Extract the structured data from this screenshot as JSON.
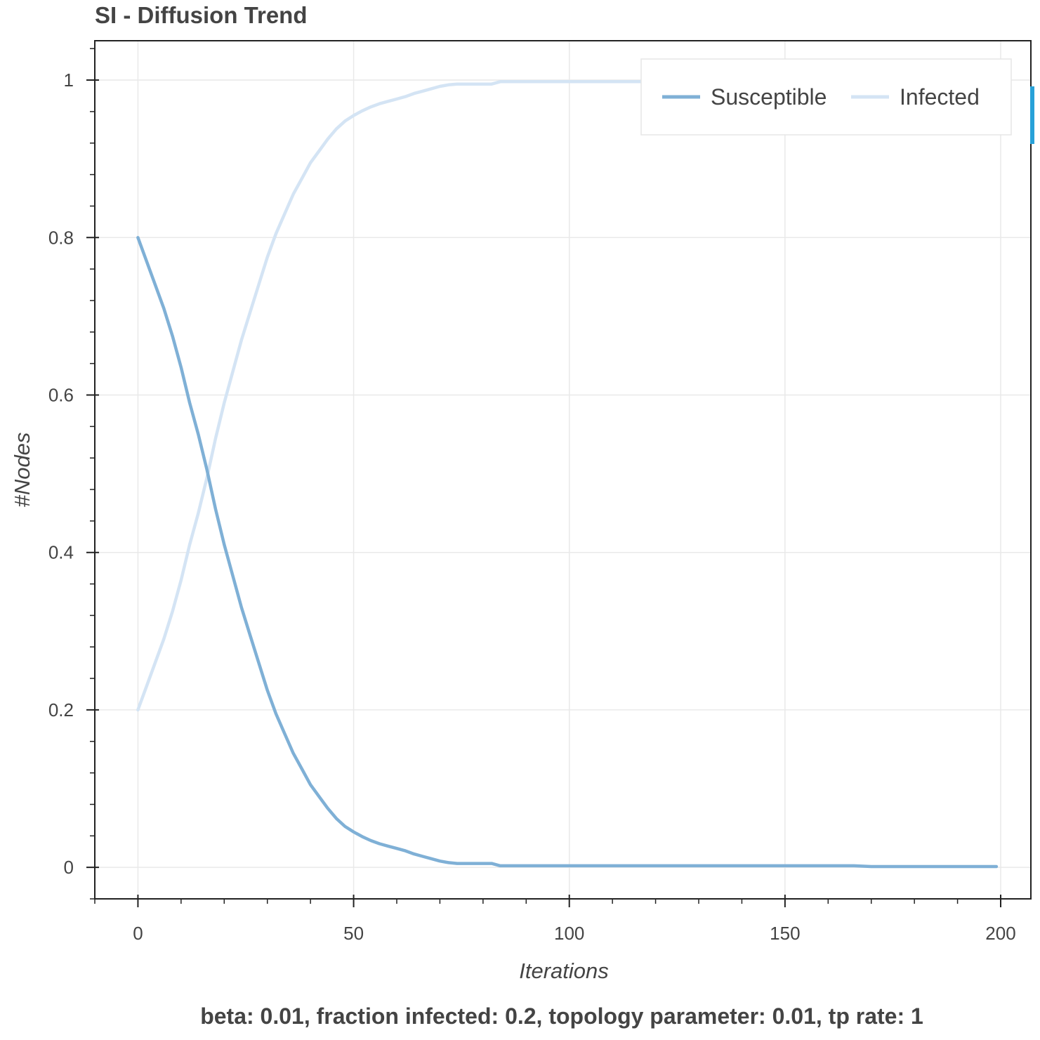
{
  "chart_data": {
    "type": "line",
    "title": "SI - Diffusion Trend",
    "xlabel": "Iterations",
    "ylabel": "#Nodes",
    "footer": "beta: 0.01, fraction infected: 0.2, topology parameter: 0.01, tp rate: 1",
    "xlim": [
      -10,
      207
    ],
    "ylim": [
      -0.04,
      1.05
    ],
    "x_ticks": [
      0,
      50,
      100,
      150,
      200
    ],
    "x_tick_labels": [
      "0",
      "50",
      "100",
      "150",
      "200"
    ],
    "y_ticks": [
      0,
      0.2,
      0.4,
      0.6,
      0.8,
      1
    ],
    "y_tick_labels": [
      "0",
      "0.2",
      "0.4",
      "0.6",
      "0.8",
      "1"
    ],
    "grid": true,
    "legend": "top-right",
    "series": [
      {
        "name": "Susceptible",
        "color": "#7fb0d6",
        "x": [
          0,
          2,
          4,
          6,
          8,
          10,
          12,
          14,
          16,
          18,
          20,
          22,
          24,
          26,
          28,
          30,
          32,
          34,
          36,
          38,
          40,
          42,
          44,
          46,
          48,
          50,
          52,
          54,
          56,
          58,
          60,
          62,
          64,
          66,
          68,
          70,
          72,
          74,
          76,
          78,
          80,
          82,
          84,
          86,
          90,
          100,
          120,
          140,
          160,
          166,
          170,
          180,
          190,
          199
        ],
        "values": [
          0.8,
          0.77,
          0.74,
          0.71,
          0.675,
          0.635,
          0.59,
          0.55,
          0.505,
          0.455,
          0.41,
          0.37,
          0.33,
          0.295,
          0.26,
          0.225,
          0.195,
          0.17,
          0.145,
          0.125,
          0.105,
          0.09,
          0.075,
          0.062,
          0.052,
          0.045,
          0.039,
          0.034,
          0.03,
          0.027,
          0.024,
          0.021,
          0.017,
          0.014,
          0.011,
          0.008,
          0.006,
          0.005,
          0.005,
          0.005,
          0.005,
          0.005,
          0.002,
          0.002,
          0.002,
          0.002,
          0.002,
          0.002,
          0.002,
          0.002,
          0.001,
          0.001,
          0.001,
          0.001
        ]
      },
      {
        "name": "Infected",
        "color": "#d4e4f4",
        "x": [
          0,
          2,
          4,
          6,
          8,
          10,
          12,
          14,
          16,
          18,
          20,
          22,
          24,
          26,
          28,
          30,
          32,
          34,
          36,
          38,
          40,
          42,
          44,
          46,
          48,
          50,
          52,
          54,
          56,
          58,
          60,
          62,
          64,
          66,
          68,
          70,
          72,
          74,
          76,
          78,
          80,
          82,
          84,
          86,
          90,
          100,
          120,
          140,
          160,
          166,
          170,
          180,
          190,
          199
        ],
        "values": [
          0.2,
          0.23,
          0.26,
          0.29,
          0.325,
          0.365,
          0.41,
          0.45,
          0.495,
          0.545,
          0.59,
          0.63,
          0.67,
          0.705,
          0.74,
          0.775,
          0.805,
          0.83,
          0.855,
          0.875,
          0.895,
          0.91,
          0.925,
          0.938,
          0.948,
          0.955,
          0.961,
          0.966,
          0.97,
          0.973,
          0.976,
          0.979,
          0.983,
          0.986,
          0.989,
          0.992,
          0.994,
          0.995,
          0.995,
          0.995,
          0.995,
          0.995,
          0.998,
          0.998,
          0.998,
          0.998,
          0.998,
          0.998,
          0.998,
          0.998,
          0.999,
          0.999,
          0.999,
          0.999
        ]
      }
    ]
  }
}
